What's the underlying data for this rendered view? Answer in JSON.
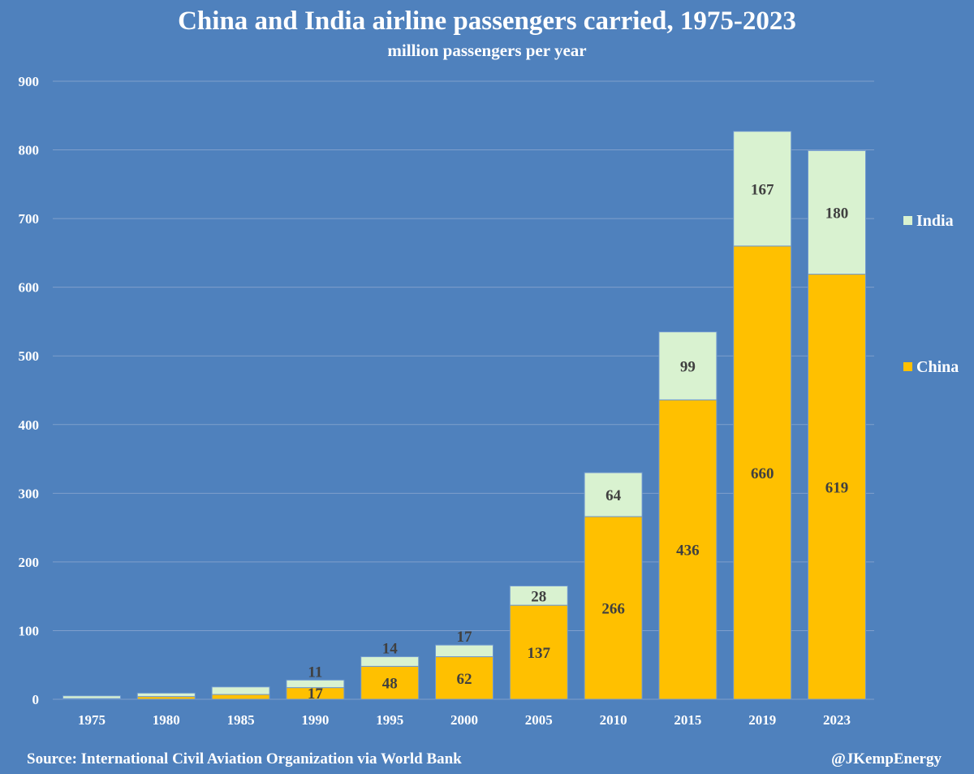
{
  "chart_data": {
    "type": "bar",
    "stacked": true,
    "title": "China and India airline passengers carried, 1975-2023",
    "subtitle": "million passengers per year",
    "categories": [
      "1975",
      "1980",
      "1985",
      "1990",
      "1995",
      "2000",
      "2005",
      "2010",
      "2015",
      "2019",
      "2023"
    ],
    "series": [
      {
        "name": "China",
        "color": "#ffc000",
        "values": [
          1,
          4,
          7,
          17,
          48,
          62,
          137,
          266,
          436,
          660,
          619
        ],
        "labels": [
          null,
          null,
          null,
          "17",
          "48",
          "62",
          "137",
          "266",
          "436",
          "660",
          "619"
        ]
      },
      {
        "name": "India",
        "color": "#d9f2d0",
        "values": [
          4,
          5,
          11,
          11,
          14,
          17,
          28,
          64,
          99,
          167,
          180
        ],
        "labels": [
          null,
          null,
          null,
          "11",
          "14",
          "17",
          "28",
          "64",
          "99",
          "167",
          "180"
        ]
      }
    ],
    "ylim": [
      0,
      900
    ],
    "yticks": [
      0,
      100,
      200,
      300,
      400,
      500,
      600,
      700,
      800,
      900
    ],
    "grid": true,
    "legend": "right",
    "legend_order": [
      "India",
      "China"
    ],
    "background": "#4f81bd"
  },
  "footer": {
    "source": "Source: International Civil Aviation Organization via World Bank",
    "credit": "@JKempEnergy"
  }
}
